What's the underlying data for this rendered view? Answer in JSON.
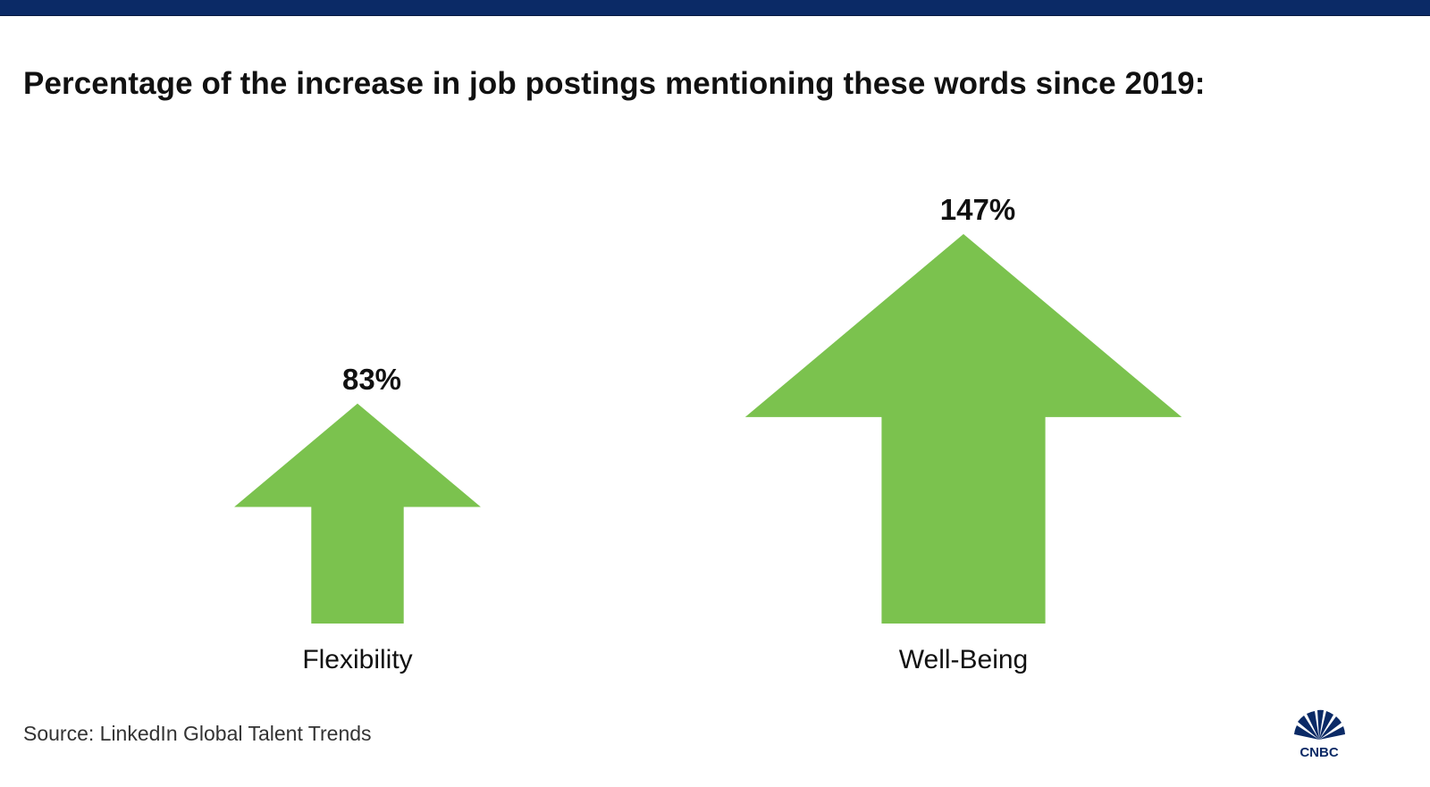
{
  "header": {
    "bar_color": "#0b2a66"
  },
  "chart_data": {
    "type": "bar",
    "title": "Percentage of the increase in job postings mentioning these words since 2019:",
    "categories": [
      "Flexibility",
      "Well-Being"
    ],
    "values": [
      83,
      147
    ],
    "value_labels": [
      "83%",
      "147%"
    ],
    "unit": "%",
    "mark_shape": "up-arrow",
    "mark_color": "#7bc24e",
    "ylim": [
      0,
      150
    ],
    "grid": false,
    "legend": "none"
  },
  "footer": {
    "source": "Source: LinkedIn Global Talent Trends",
    "logo_text": "CNBC",
    "logo_icon": "peacock-icon"
  }
}
